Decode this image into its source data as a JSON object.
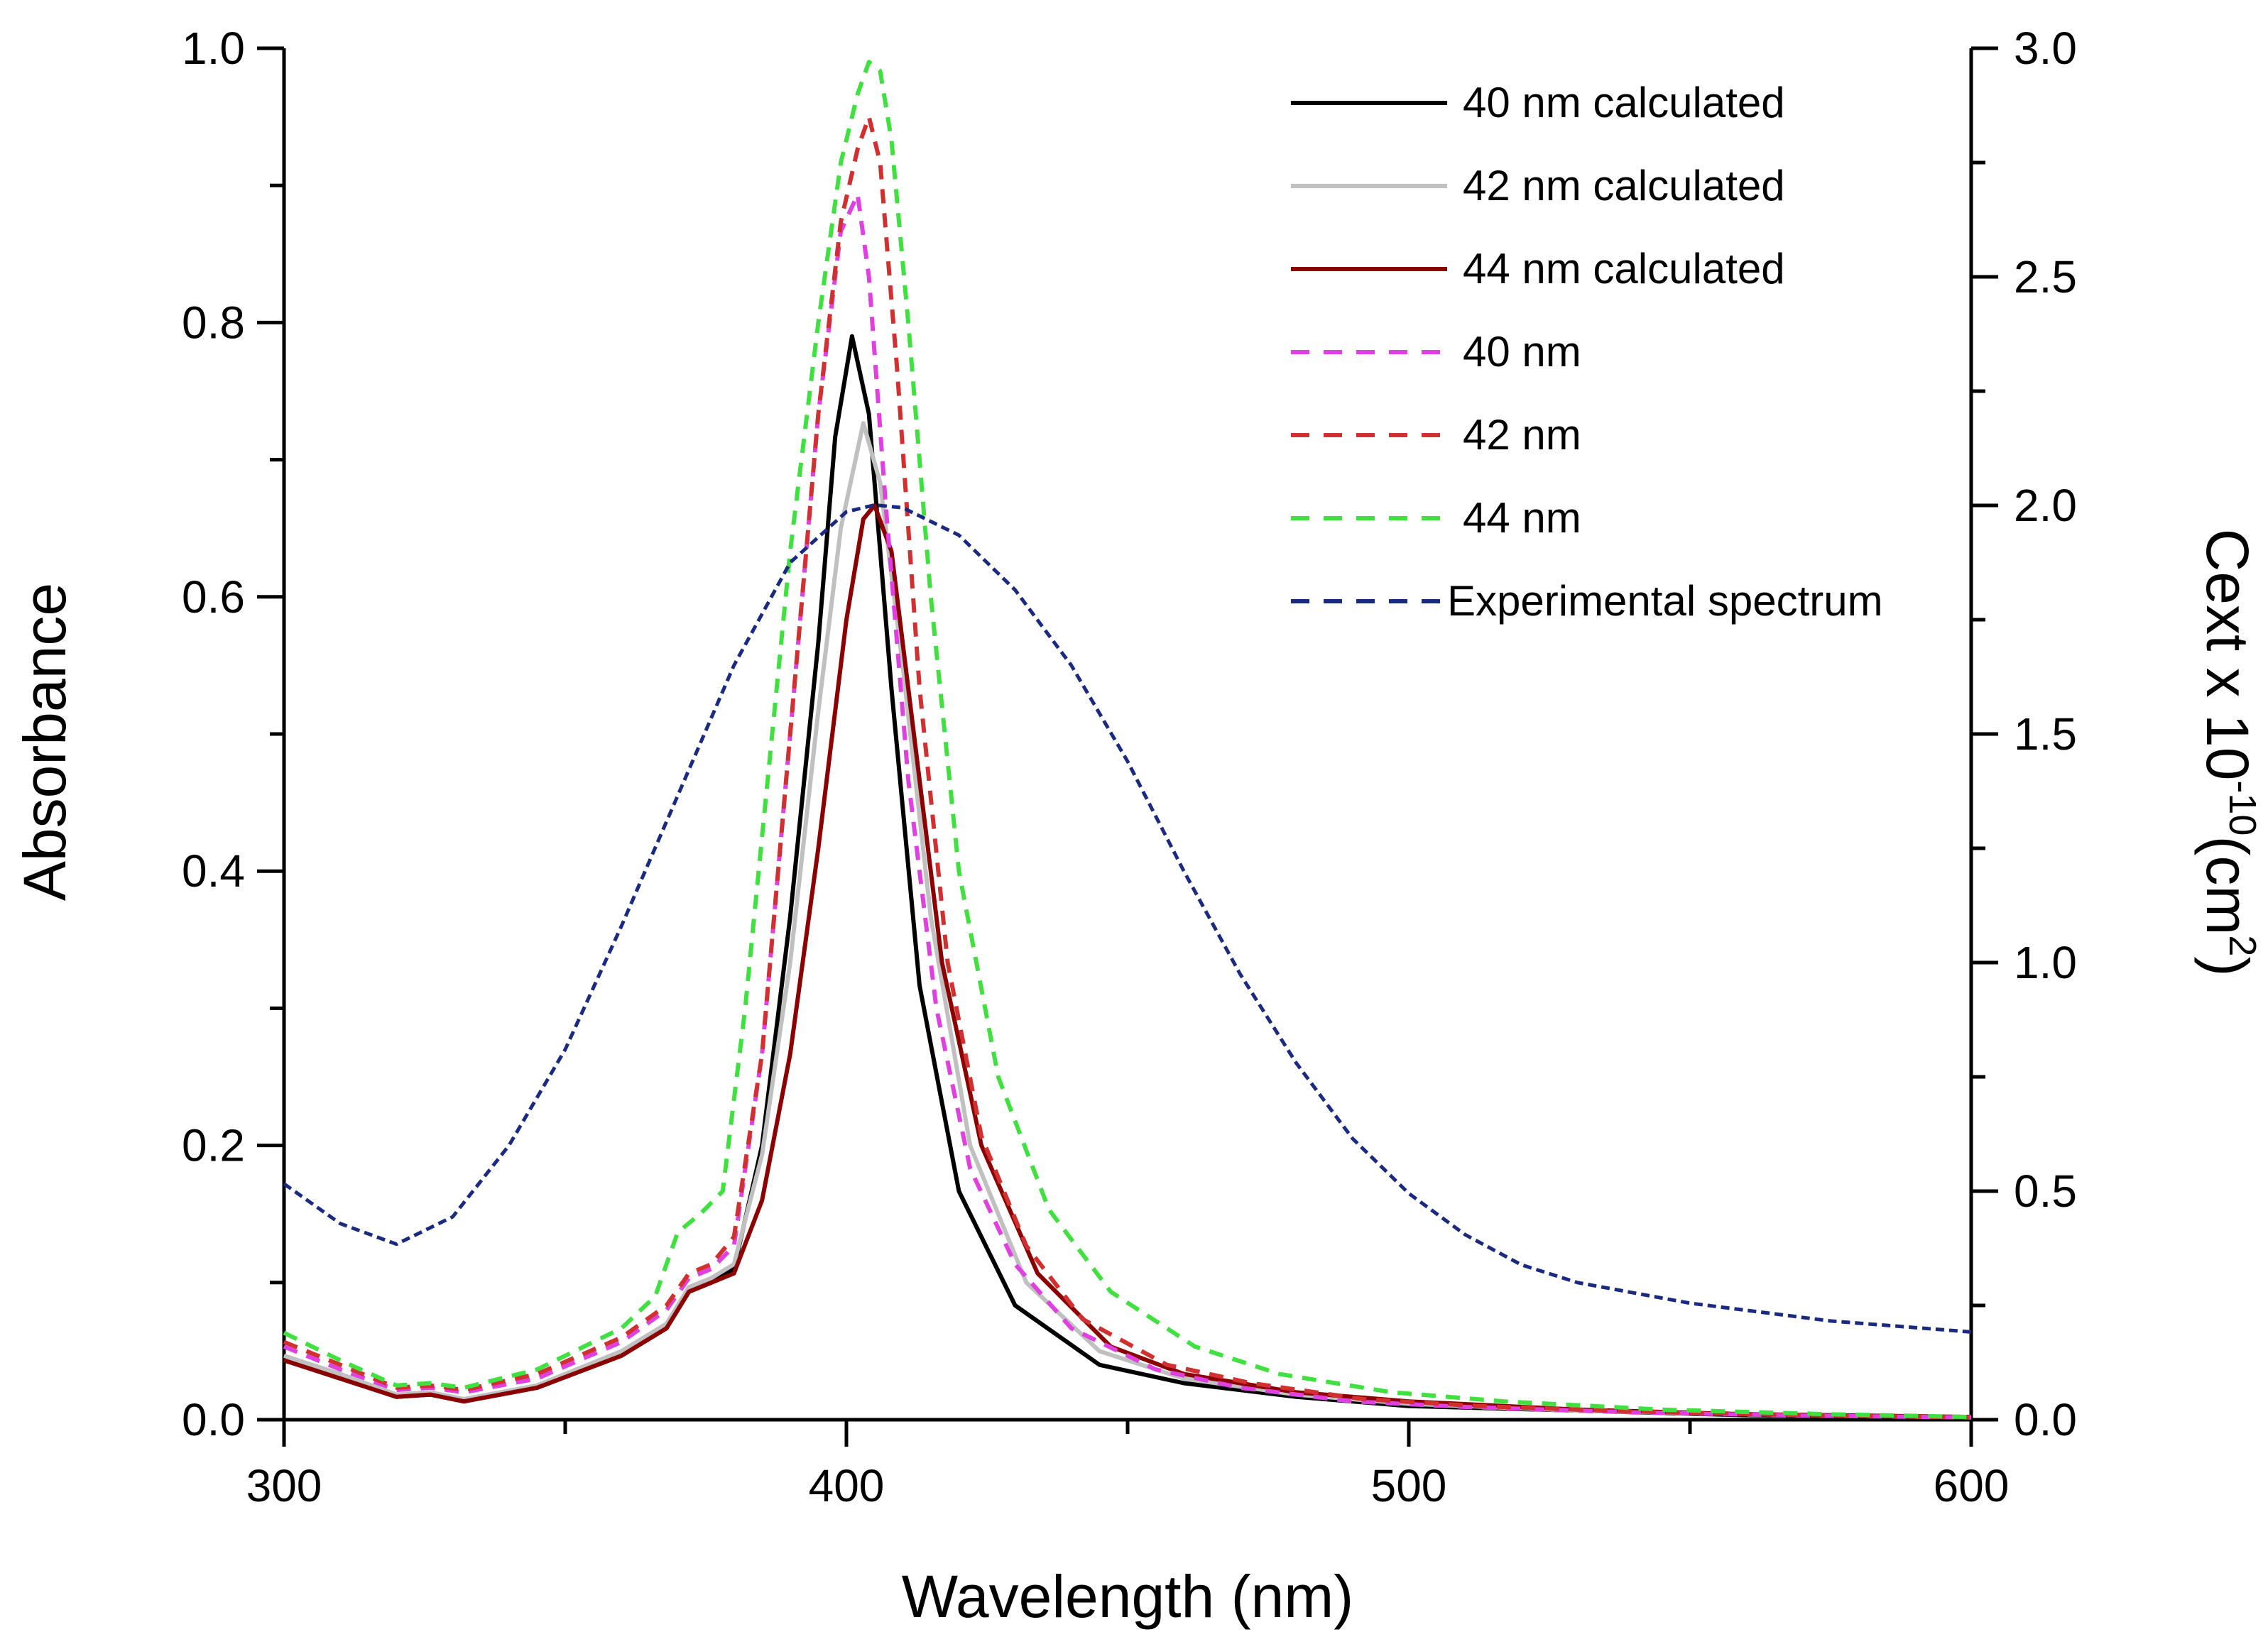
{
  "chart_data": {
    "type": "line",
    "title": "",
    "xlabel": "Wavelength (nm)",
    "ylabel": "Absorbance",
    "ylabel_right": "Cext x 10-10(cm2)",
    "ylabel_right_parts": {
      "base": "Cext x 10",
      "exp": "-10",
      "mid": "(cm",
      "exp2": "2",
      "end": ")"
    },
    "xlim": [
      300,
      600
    ],
    "ylim": [
      0,
      1.0
    ],
    "ylim_right": [
      0,
      3.0
    ],
    "x_ticks": [
      300,
      400,
      500,
      600
    ],
    "x_tick_labels": [
      "300",
      "400",
      "500",
      "600"
    ],
    "y_ticks": [
      0,
      0.2,
      0.4,
      0.6,
      0.8,
      1.0
    ],
    "y_tick_labels": [
      "0.0",
      "0.2",
      "0.4",
      "0.6",
      "0.8",
      "1.0"
    ],
    "y_right_ticks": [
      0,
      0.5,
      1.0,
      1.5,
      2.0,
      2.5,
      3.0
    ],
    "y_right_tick_labels": [
      "0.0",
      "0.5",
      "1.0",
      "1.5",
      "2.0",
      "2.5",
      "3.0"
    ],
    "grid": false,
    "legend_position": "top-right",
    "series": [
      {
        "name": "40 nm calculated",
        "axis": "right",
        "color": "#000000",
        "dash": "solid",
        "x": [
          300,
          310,
          320,
          326,
          332,
          345,
          360,
          368,
          372,
          376,
          380,
          385,
          390,
          395,
          398,
          401,
          404,
          408,
          413,
          420,
          430,
          445,
          460,
          480,
          500,
          530,
          560,
          600
        ],
        "y": [
          0.13,
          0.09,
          0.05,
          0.055,
          0.04,
          0.07,
          0.14,
          0.2,
          0.28,
          0.3,
          0.33,
          0.6,
          1.1,
          1.7,
          2.15,
          2.37,
          2.2,
          1.6,
          0.95,
          0.5,
          0.25,
          0.12,
          0.08,
          0.05,
          0.03,
          0.02,
          0.01,
          0.005
        ]
      },
      {
        "name": "42 nm calculated",
        "axis": "right",
        "color": "#c0c0c0",
        "dash": "solid",
        "x": [
          300,
          310,
          320,
          326,
          332,
          345,
          360,
          368,
          372,
          376,
          380,
          385,
          390,
          395,
          399,
          403,
          406,
          410,
          415,
          422,
          432,
          445,
          460,
          480,
          500,
          530,
          560,
          600
        ],
        "y": [
          0.14,
          0.1,
          0.055,
          0.06,
          0.045,
          0.075,
          0.15,
          0.21,
          0.29,
          0.31,
          0.34,
          0.58,
          1.0,
          1.55,
          1.95,
          2.18,
          2.05,
          1.65,
          1.1,
          0.6,
          0.3,
          0.15,
          0.09,
          0.055,
          0.035,
          0.02,
          0.012,
          0.006
        ]
      },
      {
        "name": "44 nm calculated",
        "axis": "right",
        "color": "#8b0000",
        "dash": "solid",
        "x": [
          300,
          310,
          320,
          326,
          332,
          345,
          360,
          368,
          372,
          376,
          380,
          385,
          390,
          395,
          400,
          403,
          405,
          408,
          412,
          417,
          424,
          434,
          447,
          460,
          480,
          500,
          530,
          560,
          600
        ],
        "y": [
          0.13,
          0.09,
          0.05,
          0.055,
          0.04,
          0.07,
          0.14,
          0.2,
          0.28,
          0.3,
          0.32,
          0.48,
          0.8,
          1.25,
          1.75,
          1.97,
          2.0,
          1.9,
          1.5,
          1.0,
          0.6,
          0.32,
          0.16,
          0.1,
          0.06,
          0.04,
          0.022,
          0.012,
          0.006
        ]
      },
      {
        "name": "40 nm",
        "axis": "right",
        "color": "#e040e0",
        "dash": "dashed",
        "x": [
          300,
          310,
          320,
          326,
          332,
          345,
          360,
          368,
          372,
          376,
          380,
          385,
          390,
          395,
          399,
          402,
          404,
          407,
          411,
          416,
          422,
          430,
          440,
          455,
          470,
          490,
          510,
          540,
          570,
          600
        ],
        "y": [
          0.16,
          0.11,
          0.065,
          0.07,
          0.06,
          0.09,
          0.17,
          0.24,
          0.31,
          0.33,
          0.38,
          0.8,
          1.5,
          2.2,
          2.6,
          2.68,
          2.5,
          2.0,
          1.4,
          0.9,
          0.55,
          0.34,
          0.2,
          0.11,
          0.07,
          0.04,
          0.028,
          0.016,
          0.009,
          0.005
        ]
      },
      {
        "name": "42 nm",
        "axis": "right",
        "color": "#d03030",
        "dash": "dashed",
        "x": [
          300,
          310,
          320,
          326,
          332,
          345,
          360,
          368,
          372,
          376,
          380,
          385,
          390,
          395,
          399,
          402,
          404,
          406,
          409,
          413,
          418,
          424,
          432,
          442,
          457,
          472,
          492,
          512,
          540,
          570,
          600
        ],
        "y": [
          0.17,
          0.12,
          0.07,
          0.075,
          0.065,
          0.1,
          0.18,
          0.25,
          0.32,
          0.34,
          0.4,
          0.8,
          1.5,
          2.2,
          2.62,
          2.78,
          2.85,
          2.75,
          2.3,
          1.6,
          1.0,
          0.62,
          0.38,
          0.22,
          0.12,
          0.08,
          0.045,
          0.03,
          0.018,
          0.01,
          0.005
        ]
      },
      {
        "name": "44 nm",
        "axis": "right",
        "color": "#40e040",
        "dash": "dashed",
        "x": [
          300,
          310,
          320,
          326,
          332,
          345,
          360,
          366,
          370,
          374,
          378,
          382,
          386,
          390,
          395,
          399,
          402,
          404,
          406,
          408,
          411,
          415,
          420,
          427,
          436,
          447,
          462,
          477,
          497,
          517,
          545,
          575,
          600
        ],
        "y": [
          0.19,
          0.13,
          0.075,
          0.08,
          0.07,
          0.11,
          0.2,
          0.27,
          0.41,
          0.45,
          0.5,
          0.9,
          1.4,
          1.9,
          2.4,
          2.75,
          2.9,
          2.97,
          2.95,
          2.8,
          2.4,
          1.8,
          1.2,
          0.75,
          0.46,
          0.28,
          0.16,
          0.1,
          0.06,
          0.04,
          0.022,
          0.012,
          0.006
        ]
      },
      {
        "name": "Experimental spectrum",
        "axis": "left",
        "color": "#1a2a80",
        "dash": "dashed",
        "x": [
          300,
          310,
          320,
          330,
          340,
          350,
          360,
          370,
          380,
          390,
          400,
          405,
          410,
          420,
          430,
          440,
          450,
          460,
          470,
          480,
          490,
          500,
          510,
          520,
          530,
          550,
          575,
          600
        ],
        "y": [
          0.172,
          0.143,
          0.128,
          0.148,
          0.2,
          0.27,
          0.36,
          0.455,
          0.55,
          0.625,
          0.662,
          0.667,
          0.665,
          0.645,
          0.605,
          0.55,
          0.48,
          0.4,
          0.325,
          0.26,
          0.205,
          0.165,
          0.135,
          0.113,
          0.1,
          0.085,
          0.072,
          0.064
        ]
      }
    ]
  }
}
